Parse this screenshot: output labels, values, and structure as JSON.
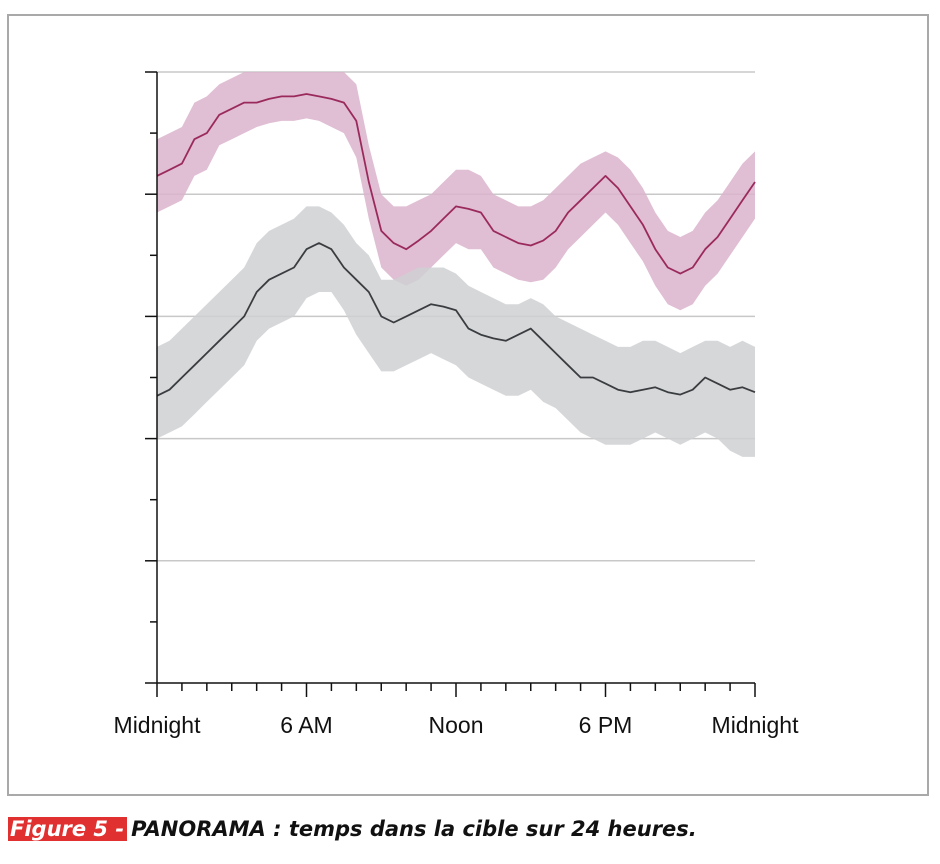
{
  "figure": {
    "label": "Figure 5 -",
    "caption": "PANORAMA : temps dans la cible sur 24 heures."
  },
  "chart_data": {
    "type": "area",
    "title": "",
    "xlabel": "",
    "ylabel": "",
    "xlim": [
      0,
      24
    ],
    "ylim": [
      0,
      5
    ],
    "x_tick_values": [
      0,
      6,
      12,
      18,
      24
    ],
    "x_tick_labels": [
      "Midnight",
      "6 AM",
      "Noon",
      "6 PM",
      "Midnight"
    ],
    "x_minor_step": 1,
    "y_major_step": 1,
    "y_minor_step": 0.5,
    "grid": "horizontal",
    "series": [
      {
        "color": "#9b2a5c",
        "band_color": "#dbb3cc",
        "x": [
          0,
          0.5,
          1,
          1.5,
          2,
          2.5,
          3,
          3.5,
          4,
          4.5,
          5,
          5.5,
          6,
          6.5,
          7,
          7.5,
          8,
          8.5,
          9,
          9.5,
          10,
          10.5,
          11,
          11.5,
          12,
          12.5,
          13,
          13.5,
          14,
          14.5,
          15,
          15.5,
          16,
          16.5,
          17,
          17.5,
          18,
          18.5,
          19,
          19.5,
          20,
          20.5,
          21,
          21.5,
          22,
          22.5,
          23,
          23.5,
          24
        ],
        "mean": [
          4.15,
          4.2,
          4.25,
          4.45,
          4.5,
          4.65,
          4.7,
          4.75,
          4.75,
          4.78,
          4.8,
          4.8,
          4.82,
          4.8,
          4.78,
          4.75,
          4.6,
          4.1,
          3.7,
          3.6,
          3.55,
          3.62,
          3.7,
          3.8,
          3.9,
          3.88,
          3.85,
          3.7,
          3.65,
          3.6,
          3.58,
          3.62,
          3.7,
          3.85,
          3.95,
          4.05,
          4.15,
          4.05,
          3.9,
          3.75,
          3.55,
          3.4,
          3.35,
          3.4,
          3.55,
          3.65,
          3.8,
          3.95,
          4.1
        ],
        "upper": [
          4.45,
          4.5,
          4.55,
          4.75,
          4.8,
          4.9,
          4.95,
          5.0,
          5.0,
          5.0,
          5.0,
          5.0,
          5.0,
          5.0,
          5.0,
          5.0,
          4.9,
          4.4,
          4.0,
          3.9,
          3.9,
          3.95,
          4.0,
          4.1,
          4.2,
          4.2,
          4.15,
          4.0,
          3.95,
          3.9,
          3.9,
          3.95,
          4.05,
          4.15,
          4.25,
          4.3,
          4.35,
          4.3,
          4.2,
          4.05,
          3.85,
          3.7,
          3.65,
          3.7,
          3.85,
          3.95,
          4.1,
          4.25,
          4.35
        ],
        "lower": [
          3.85,
          3.9,
          3.95,
          4.15,
          4.2,
          4.4,
          4.45,
          4.5,
          4.55,
          4.58,
          4.6,
          4.6,
          4.62,
          4.6,
          4.55,
          4.5,
          4.3,
          3.8,
          3.4,
          3.3,
          3.25,
          3.3,
          3.4,
          3.5,
          3.6,
          3.55,
          3.55,
          3.4,
          3.35,
          3.3,
          3.28,
          3.3,
          3.4,
          3.55,
          3.65,
          3.75,
          3.85,
          3.75,
          3.6,
          3.45,
          3.25,
          3.1,
          3.05,
          3.1,
          3.25,
          3.35,
          3.5,
          3.65,
          3.8
        ]
      },
      {
        "color": "#3a3d40",
        "band_color": "#cfd0d2",
        "x": [
          0,
          0.5,
          1,
          1.5,
          2,
          2.5,
          3,
          3.5,
          4,
          4.5,
          5,
          5.5,
          6,
          6.5,
          7,
          7.5,
          8,
          8.5,
          9,
          9.5,
          10,
          10.5,
          11,
          11.5,
          12,
          12.5,
          13,
          13.5,
          14,
          14.5,
          15,
          15.5,
          16,
          16.5,
          17,
          17.5,
          18,
          18.5,
          19,
          19.5,
          20,
          20.5,
          21,
          21.5,
          22,
          22.5,
          23,
          23.5,
          24
        ],
        "mean": [
          2.35,
          2.4,
          2.5,
          2.6,
          2.7,
          2.8,
          2.9,
          3.0,
          3.2,
          3.3,
          3.35,
          3.4,
          3.55,
          3.6,
          3.55,
          3.4,
          3.3,
          3.2,
          3.0,
          2.95,
          3.0,
          3.05,
          3.1,
          3.08,
          3.05,
          2.9,
          2.85,
          2.82,
          2.8,
          2.85,
          2.9,
          2.8,
          2.7,
          2.6,
          2.5,
          2.5,
          2.45,
          2.4,
          2.38,
          2.4,
          2.42,
          2.38,
          2.36,
          2.4,
          2.5,
          2.45,
          2.4,
          2.42,
          2.38
        ],
        "upper": [
          2.75,
          2.8,
          2.9,
          3.0,
          3.1,
          3.2,
          3.3,
          3.4,
          3.6,
          3.7,
          3.75,
          3.8,
          3.9,
          3.9,
          3.85,
          3.75,
          3.6,
          3.5,
          3.3,
          3.3,
          3.35,
          3.4,
          3.4,
          3.4,
          3.35,
          3.25,
          3.2,
          3.15,
          3.1,
          3.1,
          3.15,
          3.1,
          3.0,
          2.95,
          2.9,
          2.85,
          2.8,
          2.75,
          2.75,
          2.8,
          2.8,
          2.75,
          2.7,
          2.75,
          2.8,
          2.8,
          2.75,
          2.8,
          2.75
        ],
        "lower": [
          2.0,
          2.05,
          2.1,
          2.2,
          2.3,
          2.4,
          2.5,
          2.6,
          2.8,
          2.9,
          2.95,
          3.0,
          3.15,
          3.2,
          3.2,
          3.05,
          2.85,
          2.7,
          2.55,
          2.55,
          2.6,
          2.65,
          2.7,
          2.65,
          2.6,
          2.5,
          2.45,
          2.4,
          2.35,
          2.35,
          2.4,
          2.3,
          2.25,
          2.15,
          2.05,
          2.0,
          1.95,
          1.95,
          1.95,
          2.0,
          2.05,
          2.0,
          1.95,
          2.0,
          2.05,
          2.0,
          1.9,
          1.85,
          1.85
        ]
      }
    ]
  }
}
